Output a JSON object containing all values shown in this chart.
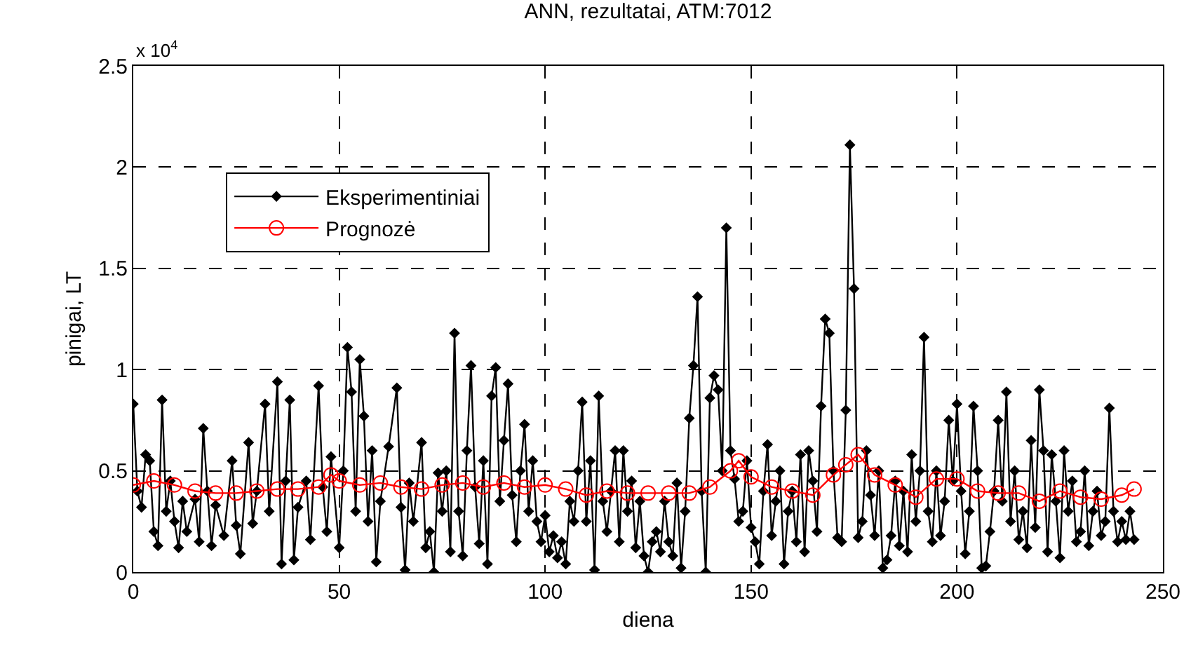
{
  "chart_data": {
    "type": "line",
    "title": "ANN, rezultatai, ATM:7012",
    "xlabel": "diena",
    "ylabel": "pinigai, LT",
    "annotations": [
      "x 10$^{4}$"
    ],
    "xlim": [
      0,
      250
    ],
    "xticks": [
      0,
      50,
      100,
      150,
      200,
      250
    ],
    "ylim": [
      0,
      2.5
    ],
    "yticks": [
      0,
      0.5,
      1,
      1.5,
      2,
      2.5
    ],
    "grid": true,
    "legend": "top left",
    "line_style": "solid",
    "series": [
      {
        "name": "Eksperimentiniai",
        "color": "#000000",
        "marker": "diamond",
        "x": [
          0,
          1,
          2,
          3,
          4,
          5,
          6,
          7,
          8,
          9,
          10,
          11,
          12,
          13,
          15,
          16,
          17,
          18,
          19,
          20,
          22,
          24,
          25,
          26,
          28,
          29,
          30,
          32,
          33,
          35,
          36,
          37,
          38,
          39,
          40,
          42,
          43,
          45,
          46,
          47,
          48,
          50,
          51,
          52,
          53,
          54,
          55,
          56,
          57,
          58,
          59,
          60,
          62,
          64,
          65,
          66,
          67,
          68,
          70,
          71,
          72,
          73,
          74,
          75,
          76,
          77,
          78,
          79,
          80,
          81,
          82,
          83,
          84,
          85,
          86,
          87,
          88,
          89,
          90,
          91,
          92,
          93,
          94,
          95,
          96,
          97,
          98,
          99,
          100,
          101,
          102,
          103,
          104,
          105,
          106,
          107,
          108,
          109,
          110,
          111,
          112,
          113,
          114,
          115,
          116,
          117,
          118,
          119,
          120,
          121,
          122,
          123,
          124,
          125,
          126,
          127,
          128,
          129,
          130,
          131,
          132,
          133,
          134,
          135,
          136,
          137,
          138,
          139,
          140,
          141,
          142,
          143,
          144,
          145,
          146,
          147,
          148,
          149,
          150,
          151,
          152,
          153,
          154,
          155,
          156,
          157,
          158,
          159,
          160,
          161,
          162,
          163,
          164,
          165,
          166,
          167,
          168,
          169,
          170,
          171,
          172,
          173,
          174,
          175,
          176,
          177,
          178,
          179,
          180,
          181,
          182,
          183,
          184,
          185,
          186,
          187,
          188,
          189,
          190,
          191,
          192,
          193,
          194,
          195,
          196,
          197,
          198,
          199,
          200,
          201,
          202,
          203,
          204,
          205,
          206,
          207,
          208,
          209,
          210,
          211,
          212,
          213,
          214,
          215,
          216,
          217,
          218,
          219,
          220,
          221,
          222,
          223,
          224,
          225,
          226,
          227,
          228,
          229,
          230,
          231,
          232,
          233,
          234,
          235,
          236,
          237,
          238,
          239,
          240,
          241,
          242,
          243
        ],
        "values": [
          0.83,
          0.4,
          0.32,
          0.58,
          0.55,
          0.2,
          0.13,
          0.85,
          0.3,
          0.45,
          0.25,
          0.12,
          0.35,
          0.2,
          0.36,
          0.15,
          0.71,
          0.4,
          0.13,
          0.33,
          0.18,
          0.55,
          0.23,
          0.09,
          0.64,
          0.24,
          0.4,
          0.83,
          0.3,
          0.94,
          0.04,
          0.45,
          0.85,
          0.06,
          0.32,
          0.45,
          0.16,
          0.92,
          0.42,
          0.2,
          0.57,
          0.12,
          0.5,
          1.11,
          0.89,
          0.3,
          1.05,
          0.77,
          0.25,
          0.6,
          0.05,
          0.35,
          0.62,
          0.91,
          0.32,
          0.01,
          0.44,
          0.25,
          0.64,
          0.12,
          0.2,
          0,
          0.49,
          0.3,
          0.5,
          0.1,
          1.18,
          0.3,
          0.08,
          0.6,
          1.02,
          0.42,
          0.14,
          0.55,
          0.04,
          0.87,
          1.01,
          0.35,
          0.65,
          0.93,
          0.38,
          0.15,
          0.5,
          0.73,
          0.3,
          0.55,
          0.25,
          0.15,
          0.28,
          0.1,
          0.18,
          0.07,
          0.15,
          0.04,
          0.35,
          0.25,
          0.5,
          0.84,
          0.25,
          0.55,
          0.01,
          0.87,
          0.35,
          0.2,
          0.4,
          0.6,
          0.15,
          0.6,
          0.3,
          0.45,
          0.12,
          0.35,
          0.08,
          0,
          0.15,
          0.2,
          0.1,
          0.35,
          0.15,
          0.08,
          0.44,
          0.02,
          0.3,
          0.76,
          1.02,
          1.36,
          0.4,
          0,
          0.86,
          0.97,
          0.9,
          0.5,
          1.7,
          0.6,
          0.46,
          0.25,
          0.3,
          0.55,
          0.22,
          0.15,
          0.04,
          0.4,
          0.63,
          0.18,
          0.35,
          0.5,
          0.04,
          0.3,
          0.4,
          0.15,
          0.58,
          0.1,
          0.6,
          0.45,
          0.2,
          0.82,
          1.25,
          1.18,
          0.5,
          0.17,
          0.15,
          0.8,
          2.11,
          1.4,
          0.17,
          0.25,
          0.6,
          0.38,
          0.18,
          0.5,
          0.02,
          0.06,
          0.18,
          0.45,
          0.13,
          0.4,
          0.1,
          0.58,
          0.25,
          0.5,
          1.16,
          0.3,
          0.15,
          0.5,
          0.18,
          0.35,
          0.75,
          0.45,
          0.83,
          0.4,
          0.09,
          0.3,
          0.82,
          0.5,
          0.02,
          0.03,
          0.2,
          0.4,
          0.75,
          0.35,
          0.89,
          0.25,
          0.5,
          0.16,
          0.3,
          0.12,
          0.65,
          0.22,
          0.9,
          0.6,
          0.1,
          0.58,
          0.35,
          0.07,
          0.6,
          0.3,
          0.45,
          0.15,
          0.2,
          0.5,
          0.13,
          0.3,
          0.4,
          0.18,
          0.25,
          0.81,
          0.3,
          0.15,
          0.25,
          0.16,
          0.3,
          0.16
        ]
      },
      {
        "name": "Prognozė",
        "color": "#ff0000",
        "marker": "circle",
        "x": [
          0,
          5,
          10,
          15,
          20,
          25,
          30,
          35,
          40,
          45,
          48,
          50,
          55,
          60,
          65,
          70,
          75,
          80,
          85,
          90,
          95,
          100,
          105,
          110,
          115,
          120,
          125,
          130,
          135,
          140,
          145,
          147,
          150,
          155,
          160,
          165,
          170,
          173,
          176,
          180,
          185,
          190,
          195,
          200,
          205,
          210,
          215,
          220,
          225,
          230,
          235,
          240,
          243
        ],
        "values": [
          0.43,
          0.45,
          0.43,
          0.4,
          0.39,
          0.39,
          0.4,
          0.41,
          0.41,
          0.42,
          0.48,
          0.45,
          0.43,
          0.44,
          0.42,
          0.41,
          0.43,
          0.44,
          0.42,
          0.44,
          0.42,
          0.43,
          0.41,
          0.38,
          0.4,
          0.39,
          0.39,
          0.39,
          0.39,
          0.42,
          0.5,
          0.55,
          0.47,
          0.42,
          0.4,
          0.38,
          0.48,
          0.53,
          0.58,
          0.48,
          0.43,
          0.37,
          0.46,
          0.46,
          0.4,
          0.39,
          0.39,
          0.35,
          0.4,
          0.37,
          0.36,
          0.38,
          0.41
        ]
      }
    ]
  }
}
